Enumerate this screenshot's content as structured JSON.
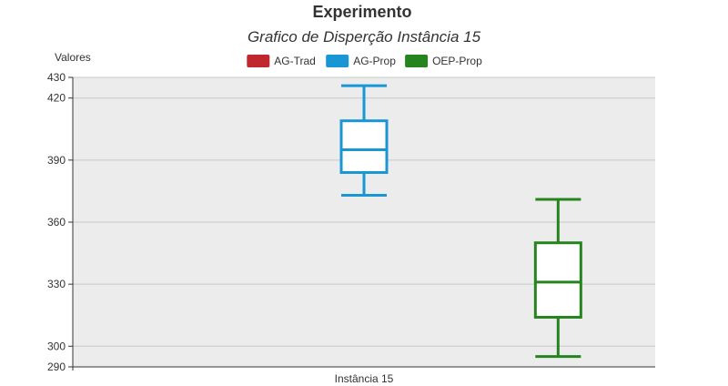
{
  "chart_data": {
    "type": "boxplot",
    "title": "Experimento",
    "subtitle": "Grafico de Disperção Instância 15",
    "ylabel": "Valores",
    "xlabel": "",
    "categories": [
      "Instância 15"
    ],
    "ylim": [
      290,
      430
    ],
    "yticks": [
      290,
      300,
      330,
      360,
      390,
      420,
      430
    ],
    "grid": true,
    "legend_position": "top-center",
    "series": [
      {
        "name": "AG-Trad",
        "color": "#c0282e",
        "box": null
      },
      {
        "name": "AG-Prop",
        "color": "#1a96d4",
        "box": {
          "min": 373,
          "q1": 384,
          "median": 395,
          "q3": 409,
          "max": 426
        }
      },
      {
        "name": "OEP-Prop",
        "color": "#26841e",
        "box": {
          "min": 295,
          "q1": 314,
          "median": 331,
          "q3": 350,
          "max": 371
        }
      }
    ]
  }
}
